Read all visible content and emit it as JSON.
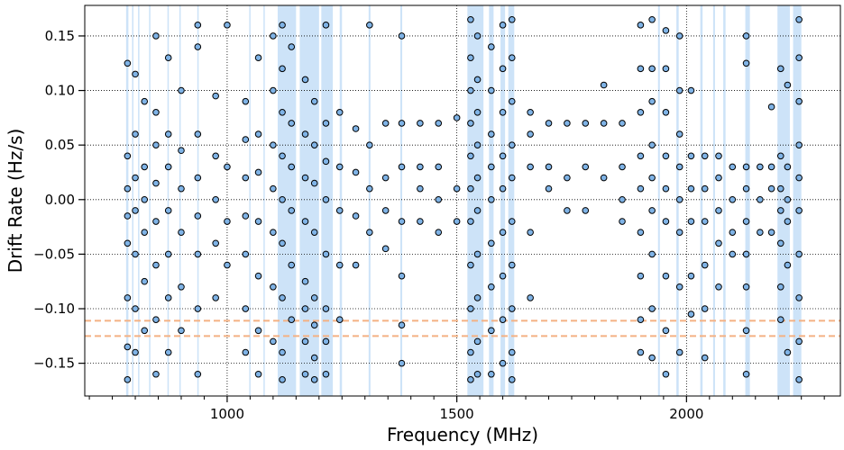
{
  "chart_data": {
    "type": "scatter",
    "xlabel": "Frequency (MHz)",
    "ylabel": "Drift Rate (Hz/s)",
    "xlim": [
      690,
      2335
    ],
    "ylim": [
      -0.18,
      0.178
    ],
    "x_ticks": [
      1000,
      1500,
      2000
    ],
    "x_tick_labels": [
      "1000",
      "1500",
      "2000"
    ],
    "y_ticks": [
      -0.15,
      -0.1,
      -0.05,
      0.0,
      0.05,
      0.1,
      0.15
    ],
    "y_tick_labels": [
      "−0.15",
      "−0.10",
      "−0.05",
      "0.00",
      "0.05",
      "0.10",
      "0.15"
    ],
    "grid": "dotted-black",
    "marker_color": "#7fb3e6",
    "marker_edge_color": "#000000",
    "band_color": "#90c0f0",
    "threshold_color": "#f4b183",
    "threshold_lines": [
      -0.111,
      -0.125
    ],
    "rfi_bands": [
      [
        780,
        785
      ],
      [
        793,
        796
      ],
      [
        806,
        809
      ],
      [
        830,
        832
      ],
      [
        870,
        873
      ],
      [
        896,
        898
      ],
      [
        935,
        938
      ],
      [
        1048,
        1050
      ],
      [
        1079,
        1081
      ],
      [
        1110,
        1150
      ],
      [
        1158,
        1200
      ],
      [
        1205,
        1230
      ],
      [
        1245,
        1250
      ],
      [
        1308,
        1312
      ],
      [
        1377,
        1381
      ],
      [
        1523,
        1558
      ],
      [
        1570,
        1580
      ],
      [
        1595,
        1605
      ],
      [
        1612,
        1625
      ],
      [
        1938,
        1942
      ],
      [
        1978,
        1983
      ],
      [
        2030,
        2035
      ],
      [
        2058,
        2062
      ],
      [
        2080,
        2085
      ],
      [
        2128,
        2138
      ],
      [
        2198,
        2225
      ],
      [
        2232,
        2250
      ]
    ],
    "columns": [
      {
        "x": 783,
        "y": [
          0.125,
          0.04,
          0.01,
          -0.015,
          -0.04,
          -0.09,
          -0.135,
          -0.165
        ]
      },
      {
        "x": 800,
        "y": [
          0.115,
          0.06,
          0.02,
          -0.01,
          -0.05,
          -0.1,
          -0.14
        ]
      },
      {
        "x": 820,
        "y": [
          0.09,
          0.03,
          0.0,
          -0.03,
          -0.075,
          -0.12
        ]
      },
      {
        "x": 845,
        "y": [
          0.15,
          0.08,
          0.05,
          0.015,
          -0.02,
          -0.06,
          -0.11,
          -0.16
        ]
      },
      {
        "x": 872,
        "y": [
          0.13,
          0.06,
          0.03,
          -0.01,
          -0.05,
          -0.09,
          -0.14
        ]
      },
      {
        "x": 900,
        "y": [
          0.1,
          0.045,
          0.01,
          -0.03,
          -0.08,
          -0.12
        ]
      },
      {
        "x": 936,
        "y": [
          0.16,
          0.14,
          0.06,
          0.02,
          -0.015,
          -0.05,
          -0.1,
          -0.16
        ]
      },
      {
        "x": 975,
        "y": [
          0.095,
          0.04,
          0.0,
          -0.04,
          -0.09
        ]
      },
      {
        "x": 1000,
        "y": [
          0.16,
          0.03,
          -0.02,
          -0.06
        ]
      },
      {
        "x": 1040,
        "y": [
          0.09,
          0.055,
          0.02,
          -0.015,
          -0.05,
          -0.1,
          -0.14
        ]
      },
      {
        "x": 1068,
        "y": [
          0.13,
          0.06,
          0.025,
          -0.02,
          -0.07,
          -0.12,
          -0.16
        ]
      },
      {
        "x": 1100,
        "y": [
          0.15,
          0.1,
          0.05,
          0.01,
          -0.03,
          -0.08,
          -0.13
        ]
      },
      {
        "x": 1120,
        "y": [
          0.16,
          0.12,
          0.08,
          0.04,
          0.0,
          -0.04,
          -0.09,
          -0.14,
          -0.165
        ]
      },
      {
        "x": 1140,
        "y": [
          0.14,
          0.07,
          0.03,
          -0.01,
          -0.06,
          -0.11
        ]
      },
      {
        "x": 1170,
        "y": [
          0.11,
          0.06,
          0.02,
          -0.02,
          -0.075,
          -0.1,
          -0.13,
          -0.16
        ]
      },
      {
        "x": 1190,
        "y": [
          0.09,
          0.05,
          0.015,
          -0.03,
          -0.09,
          -0.115,
          -0.145,
          -0.165
        ]
      },
      {
        "x": 1215,
        "y": [
          0.16,
          0.07,
          0.035,
          0.0,
          -0.05,
          -0.1,
          -0.13,
          -0.16
        ]
      },
      {
        "x": 1245,
        "y": [
          0.08,
          0.03,
          -0.01,
          -0.06,
          -0.11
        ]
      },
      {
        "x": 1280,
        "y": [
          0.065,
          0.025,
          -0.015,
          -0.06
        ]
      },
      {
        "x": 1310,
        "y": [
          0.16,
          0.05,
          0.01,
          -0.03
        ]
      },
      {
        "x": 1345,
        "y": [
          0.07,
          0.02,
          -0.01,
          -0.045
        ]
      },
      {
        "x": 1380,
        "y": [
          0.15,
          0.07,
          0.03,
          -0.02,
          -0.07,
          -0.115,
          -0.15
        ]
      },
      {
        "x": 1420,
        "y": [
          0.07,
          0.03,
          0.01,
          -0.02
        ]
      },
      {
        "x": 1460,
        "y": [
          0.07,
          0.03,
          0.0,
          -0.03
        ]
      },
      {
        "x": 1500,
        "y": [
          0.075,
          0.01,
          -0.02
        ]
      },
      {
        "x": 1530,
        "y": [
          0.165,
          0.13,
          0.1,
          0.07,
          0.04,
          0.01,
          -0.02,
          -0.06,
          -0.1,
          -0.14,
          -0.165
        ]
      },
      {
        "x": 1545,
        "y": [
          0.15,
          0.11,
          0.08,
          0.05,
          0.02,
          -0.01,
          -0.05,
          -0.09,
          -0.13,
          -0.16
        ]
      },
      {
        "x": 1575,
        "y": [
          0.14,
          0.1,
          0.06,
          0.03,
          0.0,
          -0.04,
          -0.08,
          -0.12,
          -0.16
        ]
      },
      {
        "x": 1600,
        "y": [
          0.16,
          0.12,
          0.08,
          0.04,
          0.01,
          -0.03,
          -0.07,
          -0.11,
          -0.15
        ]
      },
      {
        "x": 1620,
        "y": [
          0.165,
          0.13,
          0.09,
          0.05,
          0.02,
          -0.02,
          -0.06,
          -0.1,
          -0.14,
          -0.165
        ]
      },
      {
        "x": 1660,
        "y": [
          0.08,
          0.06,
          0.03,
          -0.03,
          -0.09
        ]
      },
      {
        "x": 1700,
        "y": [
          0.07,
          0.03,
          0.01
        ]
      },
      {
        "x": 1740,
        "y": [
          0.07,
          0.02,
          -0.01
        ]
      },
      {
        "x": 1780,
        "y": [
          0.07,
          0.03,
          -0.01
        ]
      },
      {
        "x": 1820,
        "y": [
          0.105,
          0.07,
          0.02
        ]
      },
      {
        "x": 1860,
        "y": [
          0.07,
          0.03,
          0.0,
          -0.02
        ]
      },
      {
        "x": 1900,
        "y": [
          0.16,
          0.12,
          0.08,
          0.04,
          0.01,
          -0.03,
          -0.07,
          -0.11,
          -0.14
        ]
      },
      {
        "x": 1925,
        "y": [
          0.165,
          0.12,
          0.09,
          0.05,
          0.02,
          -0.01,
          -0.05,
          -0.1,
          -0.145
        ]
      },
      {
        "x": 1955,
        "y": [
          0.155,
          0.12,
          0.08,
          0.04,
          0.01,
          -0.02,
          -0.07,
          -0.12,
          -0.16
        ]
      },
      {
        "x": 1985,
        "y": [
          0.15,
          0.1,
          0.06,
          0.03,
          0.0,
          -0.03,
          -0.08,
          -0.14
        ]
      },
      {
        "x": 2010,
        "y": [
          0.1,
          0.04,
          0.01,
          -0.02,
          -0.07,
          -0.105
        ]
      },
      {
        "x": 2040,
        "y": [
          0.04,
          0.01,
          -0.02,
          -0.06,
          -0.1,
          -0.145
        ]
      },
      {
        "x": 2070,
        "y": [
          0.04,
          0.02,
          -0.01,
          -0.04,
          -0.08
        ]
      },
      {
        "x": 2100,
        "y": [
          0.03,
          0.0,
          -0.03,
          -0.05
        ]
      },
      {
        "x": 2130,
        "y": [
          0.15,
          0.125,
          0.03,
          0.01,
          -0.02,
          -0.05,
          -0.08,
          -0.12,
          -0.16
        ]
      },
      {
        "x": 2160,
        "y": [
          0.03,
          0.0,
          -0.03
        ]
      },
      {
        "x": 2185,
        "y": [
          0.085,
          0.03,
          0.01,
          -0.03
        ]
      },
      {
        "x": 2205,
        "y": [
          0.12,
          0.04,
          0.01,
          -0.01,
          -0.04,
          -0.08,
          -0.11
        ]
      },
      {
        "x": 2220,
        "y": [
          0.105,
          0.03,
          0.0,
          -0.02,
          -0.06,
          -0.14
        ]
      },
      {
        "x": 2245,
        "y": [
          0.165,
          0.13,
          0.09,
          0.05,
          0.02,
          -0.01,
          -0.05,
          -0.09,
          -0.13,
          -0.165
        ]
      }
    ]
  }
}
